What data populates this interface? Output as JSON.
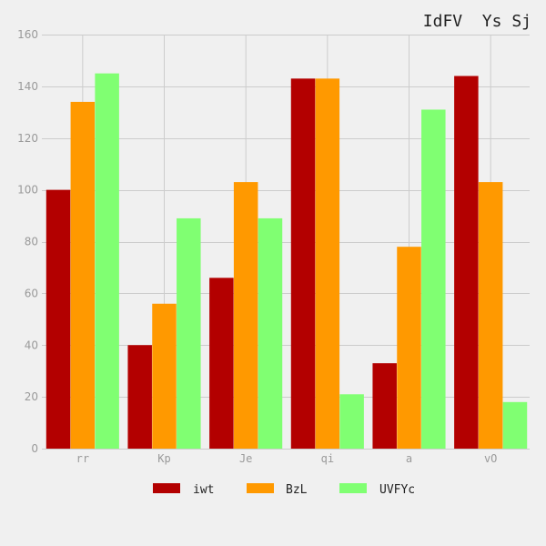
{
  "chart_data": {
    "type": "bar",
    "title": "IdFV  Ys Sj",
    "categories": [
      "rr",
      "Kp",
      "Je",
      "qi",
      "a",
      "vO"
    ],
    "series": [
      {
        "name": "iwt",
        "color": "#b30000",
        "values": [
          100,
          40,
          66,
          143,
          33,
          144
        ]
      },
      {
        "name": "BzL",
        "color": "#ff9900",
        "values": [
          134,
          56,
          103,
          143,
          78,
          103
        ]
      },
      {
        "name": "UVFYc",
        "color": "#80ff72",
        "values": [
          145,
          89,
          89,
          21,
          131,
          18
        ]
      }
    ],
    "ylim": [
      0,
      160
    ],
    "yticks": [
      0,
      20,
      40,
      60,
      80,
      100,
      120,
      140,
      160
    ],
    "grid": true,
    "legend_position": "bottom-center",
    "background": "#f0f0f0"
  }
}
